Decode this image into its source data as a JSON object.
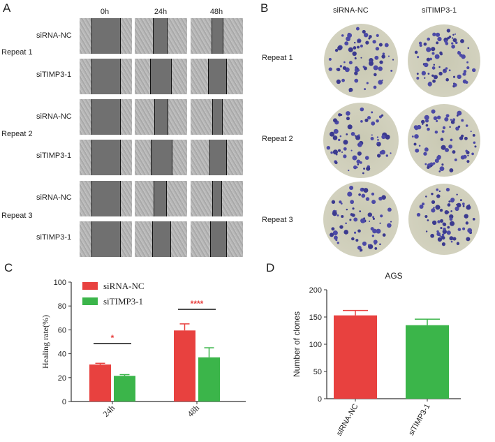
{
  "panels": {
    "a": "A",
    "b": "B",
    "c": "C",
    "d": "D"
  },
  "panel_a": {
    "timepoints": [
      "0h",
      "24h",
      "48h"
    ],
    "repeats": [
      {
        "label": "Repeat 1",
        "groups": [
          "siRNA-NC",
          "siTIMP3-1"
        ]
      },
      {
        "label": "Repeat 2",
        "groups": [
          "siRNA-NC",
          "siTIMP3-1"
        ]
      },
      {
        "label": "Repeat 3",
        "groups": [
          "siRNA-NC",
          "siTIMP3-1"
        ]
      }
    ]
  },
  "panel_b": {
    "columns": [
      "siRNA-NC",
      "siTIMP3-1"
    ],
    "rows": [
      "Repeat 1",
      "Repeat 2",
      "Repeat 3"
    ]
  },
  "chart_data": [
    {
      "type": "bar",
      "panel": "C",
      "title": "",
      "xlabel": "",
      "ylabel": "Healing rate(%)",
      "ylim": [
        0,
        100
      ],
      "yticks": [
        "0",
        "20",
        "40",
        "60",
        "80",
        "100"
      ],
      "categories": [
        "24h",
        "48h"
      ],
      "series": [
        {
          "name": "siRNA-NC",
          "values": [
            31,
            59.5
          ],
          "errors": [
            1,
            5.5
          ],
          "color": "#e8413f"
        },
        {
          "name": "siTIMP3-1",
          "values": [
            21.5,
            37
          ],
          "errors": [
            1,
            8
          ],
          "color": "#3bb54a"
        }
      ],
      "significance": [
        "*",
        "****"
      ],
      "significance_color": "#e8413f",
      "legend": "top-left"
    },
    {
      "type": "bar",
      "panel": "D",
      "title": "AGS",
      "xlabel": "",
      "ylabel": "Number of clones",
      "ylim": [
        0,
        200
      ],
      "yticks": [
        "0",
        "50",
        "100",
        "150",
        "200"
      ],
      "categories": [
        "siRNA-NC",
        "siTIMP3-1"
      ],
      "values": [
        153,
        135
      ],
      "errors": [
        9,
        11
      ],
      "colors": [
        "#e8413f",
        "#3bb54a"
      ]
    }
  ]
}
